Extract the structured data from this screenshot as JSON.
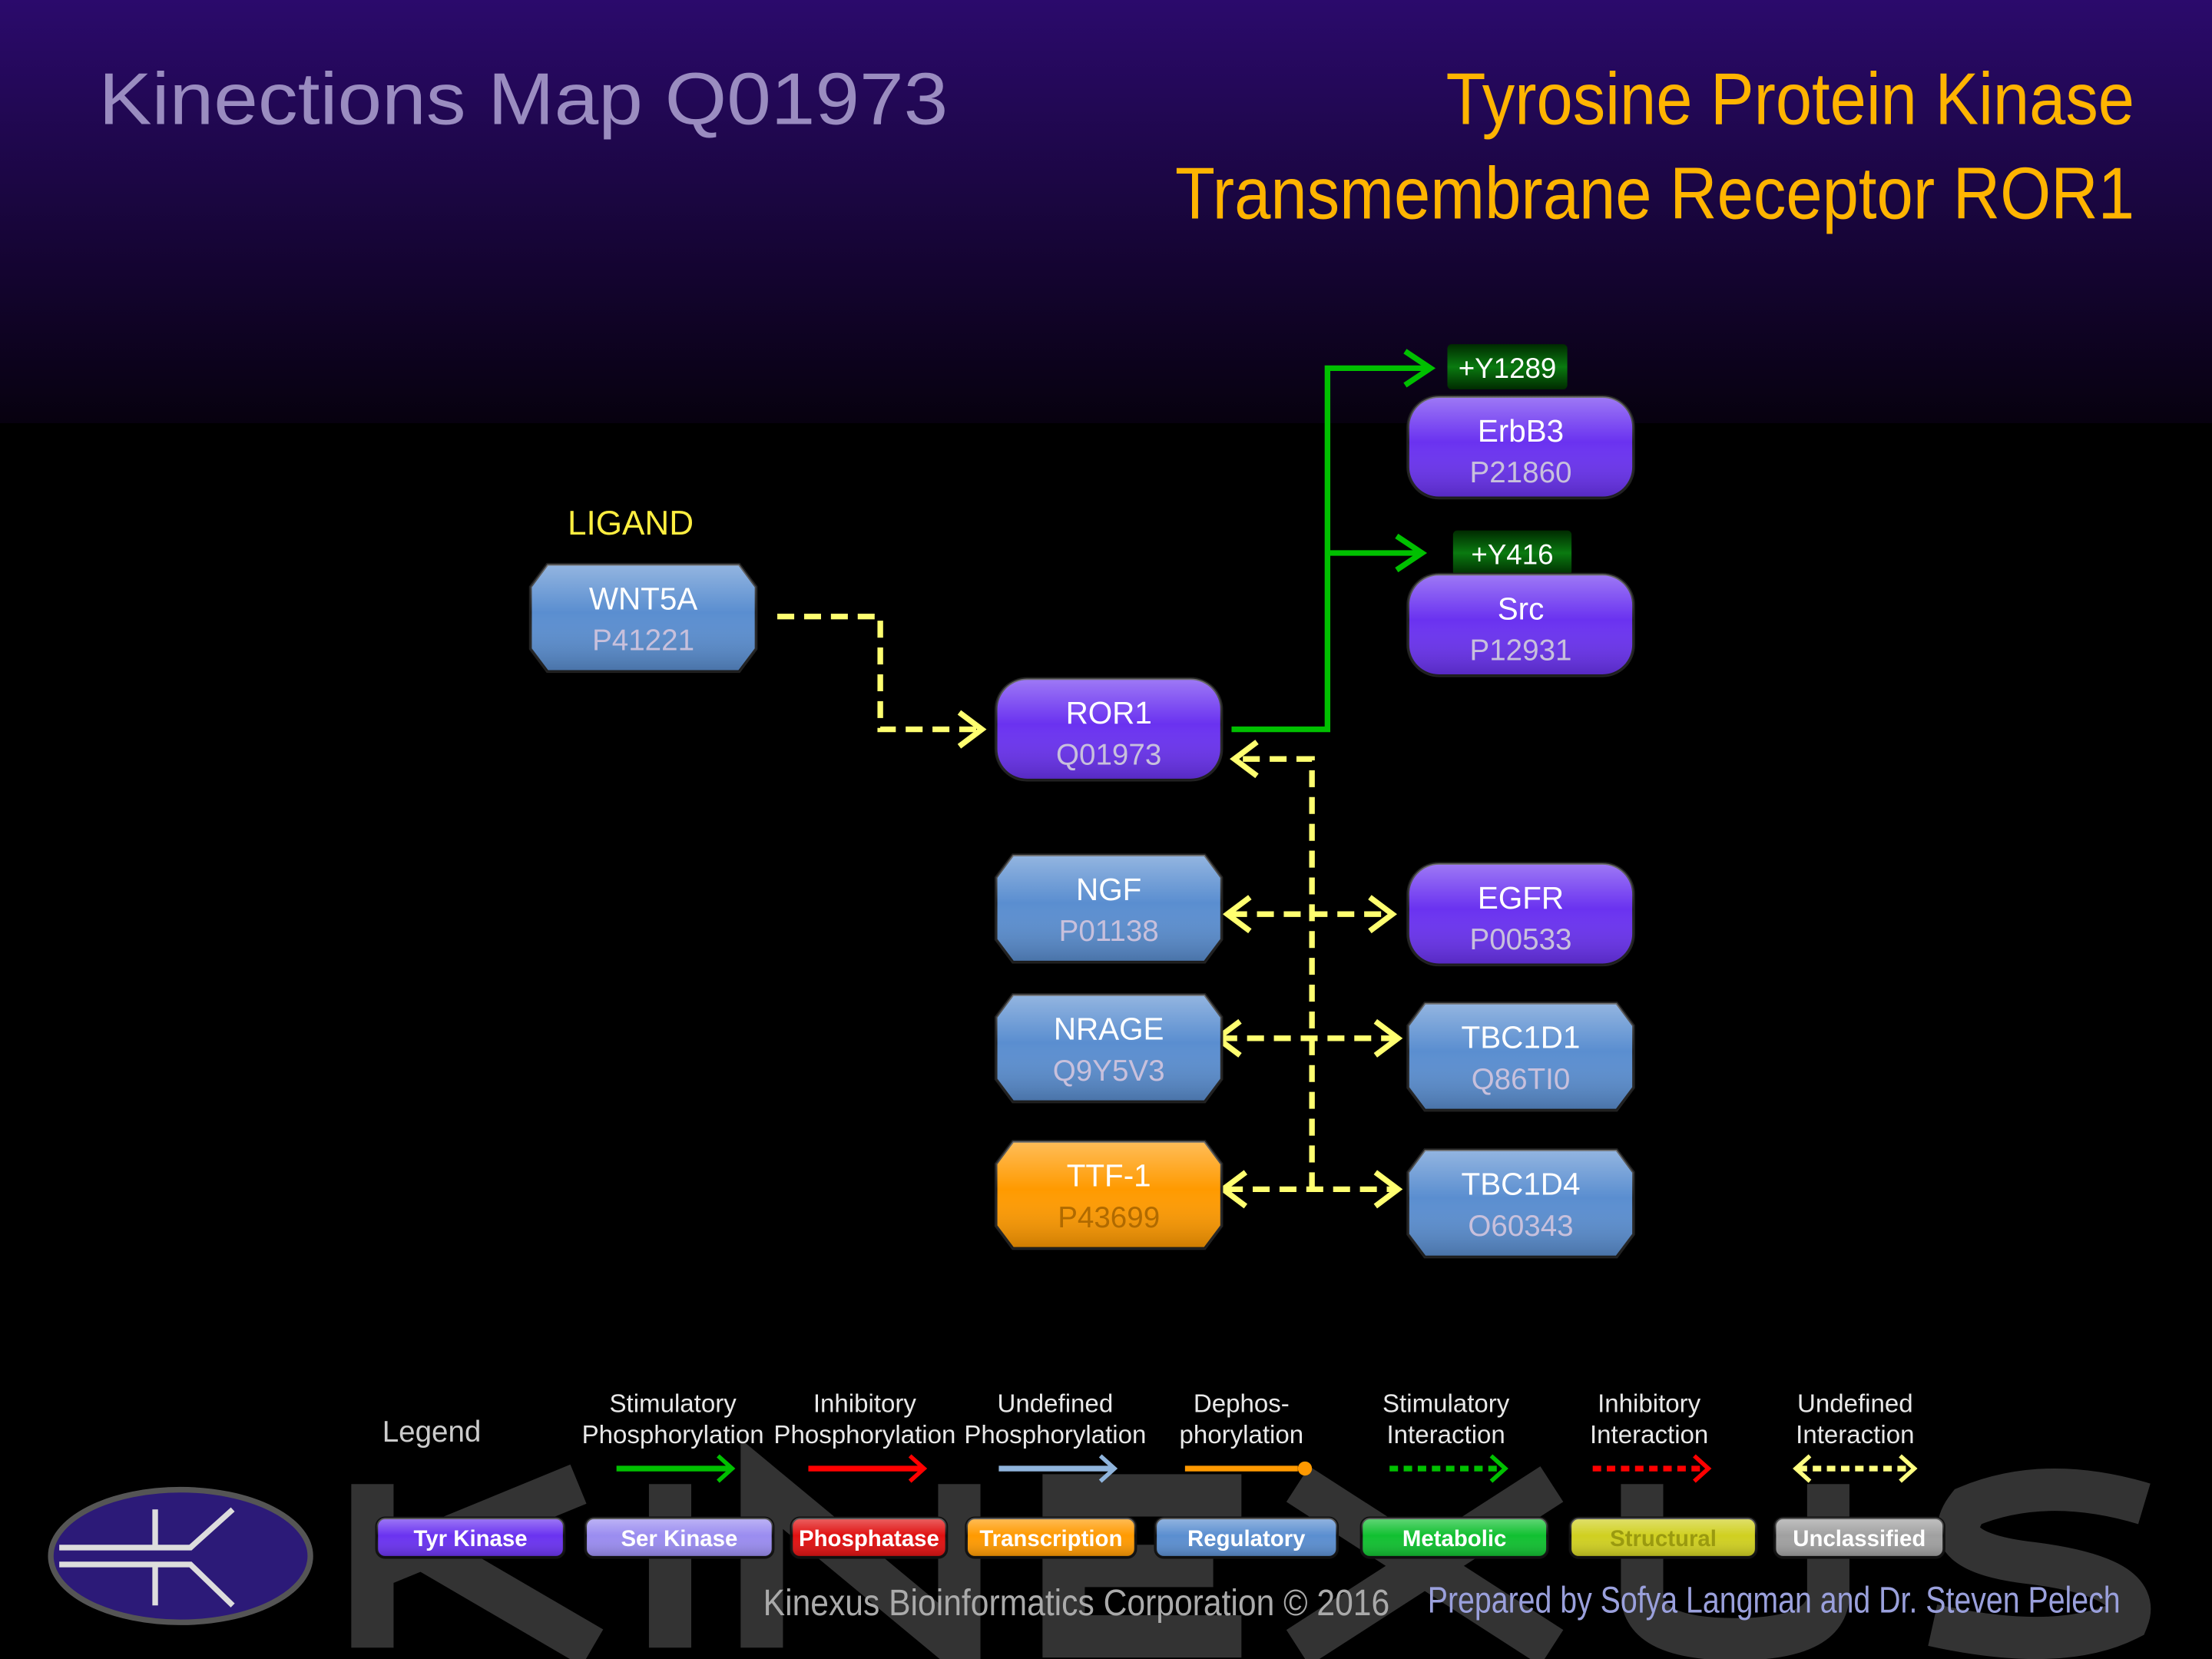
{
  "header": {
    "map_title": "Kinections Map Q01973",
    "protein_name_line1": "Tyrosine Protein Kinase",
    "protein_name_line2": "Transmembrane Receptor ROR1"
  },
  "ligand_label": "LIGAND",
  "nodes": [
    {
      "name": "WNT5A",
      "id": "P41221",
      "type": "Regulatory"
    },
    {
      "name": "ROR1",
      "id": "Q01973",
      "type": "Tyr Kinase"
    },
    {
      "name": "ErbB3",
      "id": "P21860",
      "type": "Tyr Kinase"
    },
    {
      "name": "Src",
      "id": "P12931",
      "type": "Tyr Kinase"
    },
    {
      "name": "NGF",
      "id": "P01138",
      "type": "Regulatory"
    },
    {
      "name": "EGFR",
      "id": "P00533",
      "type": "Tyr Kinase"
    },
    {
      "name": "NRAGE",
      "id": "Q9Y5V3",
      "type": "Regulatory"
    },
    {
      "name": "TBC1D1",
      "id": "Q86TI0",
      "type": "Regulatory"
    },
    {
      "name": "TTF-1",
      "id": "P43699",
      "type": "Transcription"
    },
    {
      "name": "TBC1D4",
      "id": "O60343",
      "type": "Regulatory"
    }
  ],
  "sites": [
    {
      "label": "+Y1289",
      "target": "ErbB3"
    },
    {
      "label": "+Y416",
      "target": "Src"
    }
  ],
  "edges": [
    {
      "from": "WNT5A",
      "to": "ROR1",
      "type": "Undefined Interaction"
    },
    {
      "from": "ROR1",
      "to": "ErbB3",
      "type": "Stimulatory Phosphorylation"
    },
    {
      "from": "ROR1",
      "to": "Src",
      "type": "Stimulatory Phosphorylation"
    },
    {
      "from": "NGF",
      "to": "ROR1",
      "type": "Undefined Interaction"
    },
    {
      "from": "EGFR",
      "to": "ROR1",
      "type": "Undefined Interaction"
    },
    {
      "from": "NRAGE",
      "to": "ROR1",
      "type": "Undefined Interaction"
    },
    {
      "from": "TBC1D1",
      "to": "ROR1",
      "type": "Undefined Interaction"
    },
    {
      "from": "TTF-1",
      "to": "ROR1",
      "type": "Undefined Interaction"
    },
    {
      "from": "TBC1D4",
      "to": "ROR1",
      "type": "Undefined Interaction"
    }
  ],
  "legend": {
    "title": "Legend",
    "edge_types": [
      {
        "line1": "Stimulatory",
        "line2": "Phosphorylation",
        "color": "#00c000",
        "style": "solid-arrow"
      },
      {
        "line1": "Inhibitory",
        "line2": "Phosphorylation",
        "color": "#ff0000",
        "style": "solid-arrow"
      },
      {
        "line1": "Undefined",
        "line2": "Phosphorylation",
        "color": "#8fb4dc",
        "style": "solid-arrow"
      },
      {
        "line1": "Dephos-",
        "line2": "phorylation",
        "color": "#ff9900",
        "style": "solid-ball"
      },
      {
        "line1": "Stimulatory",
        "line2": "Interaction",
        "color": "#00c000",
        "style": "dashed-arrow"
      },
      {
        "line1": "Inhibitory",
        "line2": "Interaction",
        "color": "#ff0000",
        "style": "dashed-arrow"
      },
      {
        "line1": "Undefined",
        "line2": "Interaction",
        "color": "#ffff80",
        "style": "dashed-double-arrow"
      }
    ],
    "node_types": [
      {
        "label": "Tyr Kinase",
        "color": "#6a32f0"
      },
      {
        "label": "Ser Kinase",
        "color": "#9a8cf0"
      },
      {
        "label": "Phosphatase",
        "color": "#e01010"
      },
      {
        "label": "Transcription",
        "color": "#ff9a00"
      },
      {
        "label": "Regulatory",
        "color": "#5a8ed0"
      },
      {
        "label": "Metabolic",
        "color": "#10c030"
      },
      {
        "label": "Structural",
        "color": "#d0d020"
      },
      {
        "label": "Unclassified",
        "color": "#a0a0a0"
      }
    ]
  },
  "footer": {
    "copyright": "Kinexus Bioinformatics Corporation © 2016",
    "prepared_by": "Prepared by Sofya Langman and Dr. Steven Pelech",
    "watermark": "KINEXUS"
  },
  "colors": {
    "tyr_kinase": "#6a32f0",
    "regulatory": "#5a8ed0",
    "transcription": "#ff9a00",
    "stimulatory": "#00c000",
    "undefined_interaction": "#ffff70",
    "title_orange": "#ffb400"
  }
}
